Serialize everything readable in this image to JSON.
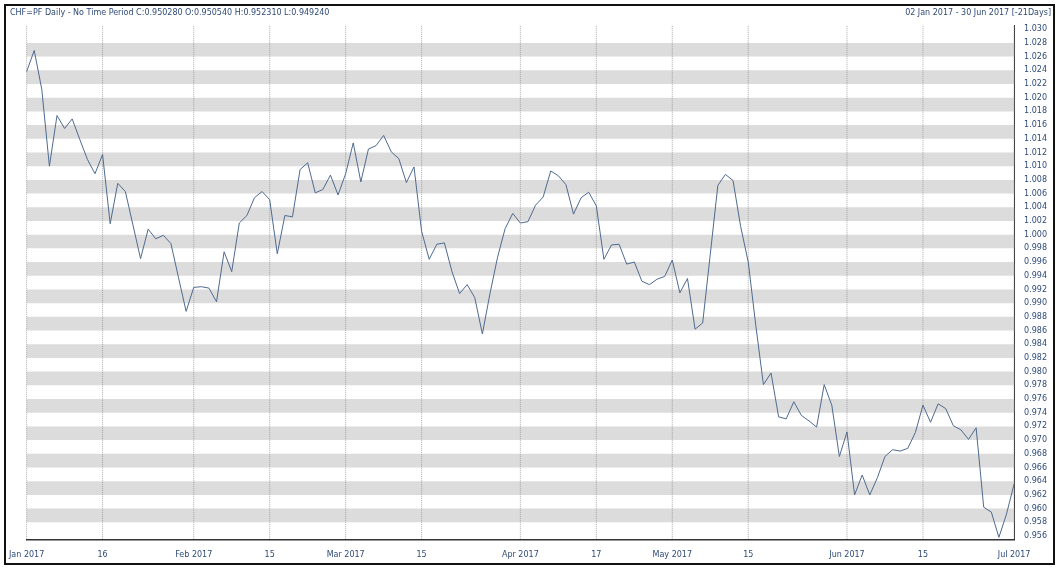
{
  "chart_data": {
    "type": "line",
    "title": "CHF=PF Daily - No Time Period  C:0.950280 O:0.950540 H:0.952310 L:0.949240",
    "subtitle": "02 Jan 2017  -  30 Jun 2017 [-21Days]",
    "categories": [
      "Jan 2017",
      null,
      null,
      null,
      null,
      null,
      null,
      null,
      null,
      null,
      "16",
      null,
      null,
      null,
      null,
      null,
      null,
      null,
      null,
      null,
      null,
      null,
      "Feb 2017",
      null,
      null,
      null,
      null,
      null,
      null,
      null,
      null,
      null,
      "15",
      null,
      null,
      null,
      null,
      null,
      null,
      null,
      null,
      null,
      "Mar 2017",
      null,
      null,
      null,
      null,
      null,
      null,
      null,
      null,
      null,
      "15",
      null,
      null,
      null,
      null,
      null,
      null,
      null,
      null,
      null,
      null,
      null,
      null,
      "Apr 2017",
      null,
      null,
      null,
      null,
      null,
      null,
      null,
      null,
      null,
      "17",
      null,
      null,
      null,
      null,
      null,
      null,
      null,
      null,
      null,
      "May 2017",
      null,
      null,
      null,
      null,
      null,
      null,
      null,
      null,
      null,
      "15",
      null,
      null,
      null,
      null,
      null,
      null,
      null,
      null,
      null,
      null,
      null,
      null,
      "Jun 2017",
      null,
      null,
      null,
      null,
      null,
      null,
      null,
      null,
      null,
      "15",
      null,
      null,
      null,
      null,
      null,
      null,
      null,
      null,
      null,
      null,
      null,
      "Jul 2017"
    ],
    "series": [
      {
        "color": "#4f6a8f",
        "values": [
          1.0238,
          1.0269,
          1.0212,
          1.01,
          1.0174,
          1.0155,
          1.0169,
          1.0139,
          1.011,
          1.0089,
          1.0117,
          1.0016,
          1.0075,
          1.0063,
          1.0014,
          0.9965,
          1.0008,
          0.9994,
          0.9999,
          0.9987,
          0.9937,
          0.9888,
          0.9923,
          0.9924,
          0.9922,
          0.9902,
          0.9975,
          0.9946,
          1.0017,
          1.0028,
          1.0054,
          1.0063,
          1.0051,
          0.9972,
          1.0028,
          1.0026,
          1.0095,
          1.0105,
          1.0061,
          1.0066,
          1.0087,
          1.0058,
          1.0089,
          1.0134,
          1.0077,
          1.0125,
          1.013,
          1.0145,
          1.0121,
          1.0111,
          1.0076,
          1.0099,
          1.0005,
          0.9964,
          0.9986,
          0.9988,
          0.9946,
          0.9914,
          0.9927,
          0.9908,
          0.9855,
          0.9914,
          0.9967,
          1.0009,
          1.0031,
          1.0017,
          1.0019,
          1.0043,
          1.0055,
          1.0093,
          1.0086,
          1.0073,
          1.003,
          1.0054,
          1.0062,
          1.0042,
          0.9964,
          0.9985,
          0.9986,
          0.9957,
          0.996,
          0.9932,
          0.9927,
          0.9935,
          0.9939,
          0.9963,
          0.9915,
          0.9936,
          0.9862,
          0.9871,
          0.9971,
          1.0072,
          1.0088,
          1.0079,
          1.0012,
          0.996,
          0.9867,
          0.9781,
          0.9798,
          0.9734,
          0.9731,
          0.9756,
          0.9736,
          0.9728,
          0.9719,
          0.9781,
          0.9751,
          0.9676,
          0.9712,
          0.962,
          0.9649,
          0.962,
          0.9645,
          0.9676,
          0.9686,
          0.9684,
          0.9688,
          0.9711,
          0.9751,
          0.9726,
          0.9753,
          0.9746,
          0.9721,
          0.9715,
          0.9701,
          0.9718,
          0.9602,
          0.9595,
          0.9558,
          0.9592,
          0.9636
        ]
      }
    ],
    "ylim": [
      0.9555,
      1.0305
    ],
    "yticks": [
      {
        "value": 1.03,
        "label": "1.030"
      },
      {
        "value": 1.028,
        "label": "1.028"
      },
      {
        "value": 1.026,
        "label": "1.026"
      },
      {
        "value": 1.024,
        "label": "1.024"
      },
      {
        "value": 1.022,
        "label": "1.022"
      },
      {
        "value": 1.02,
        "label": "1.020"
      },
      {
        "value": 1.018,
        "label": "1.018"
      },
      {
        "value": 1.016,
        "label": "1.016"
      },
      {
        "value": 1.014,
        "label": "1.014"
      },
      {
        "value": 1.012,
        "label": "1.012"
      },
      {
        "value": 1.01,
        "label": "1.010"
      },
      {
        "value": 1.008,
        "label": "1.008"
      },
      {
        "value": 1.006,
        "label": "1.006"
      },
      {
        "value": 1.004,
        "label": "1.004"
      },
      {
        "value": 1.002,
        "label": "1.002"
      },
      {
        "value": 1.0,
        "label": "1.000"
      },
      {
        "value": 0.998,
        "label": "0.998"
      },
      {
        "value": 0.996,
        "label": "0.996"
      },
      {
        "value": 0.994,
        "label": "0.994"
      },
      {
        "value": 0.992,
        "label": "0.992"
      },
      {
        "value": 0.99,
        "label": "0.990"
      },
      {
        "value": 0.988,
        "label": "0.988"
      },
      {
        "value": 0.986,
        "label": "0.986"
      },
      {
        "value": 0.984,
        "label": "0.984"
      },
      {
        "value": 0.982,
        "label": "0.982"
      },
      {
        "value": 0.98,
        "label": "0.980"
      },
      {
        "value": 0.978,
        "label": "0.978"
      },
      {
        "value": 0.976,
        "label": "0.976"
      },
      {
        "value": 0.974,
        "label": "0.974"
      },
      {
        "value": 0.972,
        "label": "0.972"
      },
      {
        "value": 0.97,
        "label": "0.970"
      },
      {
        "value": 0.968,
        "label": "0.968"
      },
      {
        "value": 0.966,
        "label": "0.966"
      },
      {
        "value": 0.964,
        "label": "0.964"
      },
      {
        "value": 0.962,
        "label": "0.962"
      },
      {
        "value": 0.96,
        "label": "0.960"
      },
      {
        "value": 0.958,
        "label": "0.958"
      },
      {
        "value": 0.956,
        "label": "0.956"
      }
    ],
    "grid": true,
    "marker": "none",
    "legend": false
  }
}
